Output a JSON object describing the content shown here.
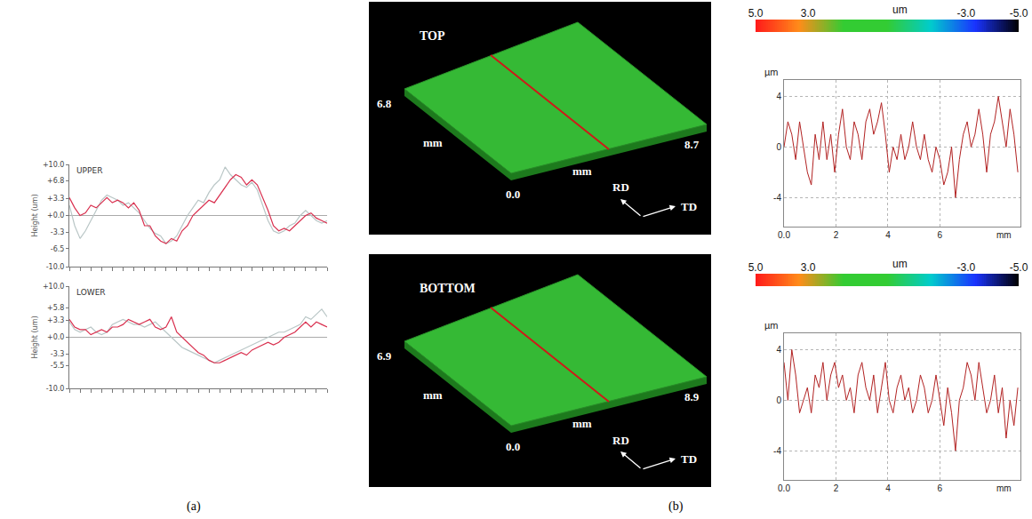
{
  "chart_data": [
    {
      "type": "line",
      "title": "UPPER",
      "ylabel": "Height (um)",
      "x": [
        0,
        1,
        2,
        3,
        4,
        5,
        6,
        7,
        8,
        9,
        10,
        11,
        12,
        13,
        14,
        15,
        16,
        17,
        18,
        19,
        20,
        21,
        22,
        23,
        24,
        25,
        26,
        27,
        28,
        29,
        30,
        31,
        32,
        33,
        34,
        35,
        36,
        37,
        38,
        39,
        40,
        41,
        42,
        43,
        44,
        45,
        46,
        47,
        48
      ],
      "series": [
        {
          "color": "#d9304f",
          "values": [
            3.5,
            1.5,
            0,
            0.5,
            2,
            1.5,
            2.5,
            3.5,
            2.5,
            3,
            2.5,
            1.5,
            2.5,
            1,
            -2,
            -2,
            -4,
            -5,
            -5.5,
            -4.5,
            -5,
            -3,
            -2,
            0,
            1,
            2,
            3,
            2.5,
            4,
            5.5,
            7,
            8,
            7.5,
            6,
            7,
            6,
            3.5,
            1,
            -2,
            -3,
            -2.5,
            -3,
            -2,
            -1,
            0,
            0.5,
            -0.5,
            -1,
            -1.5
          ]
        },
        {
          "color": "#b9c6c6",
          "values": [
            2,
            -2,
            -4.5,
            -3,
            -1,
            1,
            3,
            4,
            3.5,
            3,
            2,
            2.5,
            1.5,
            0.5,
            -1,
            -2.5,
            -3.5,
            -4,
            -5.5,
            -5,
            -4,
            -2,
            0,
            1.5,
            3,
            2.5,
            4.5,
            6,
            7,
            9.5,
            8,
            7,
            6,
            5.5,
            6.5,
            5,
            2,
            -1,
            -3,
            -3.5,
            -3,
            -2,
            -1.5,
            0,
            1,
            0,
            -1,
            -1.5,
            -1
          ]
        }
      ],
      "xlim": [
        0,
        48
      ],
      "xticks": [
        0,
        2,
        4,
        6,
        8,
        10,
        12,
        14,
        16,
        18,
        20,
        22,
        24,
        26,
        28,
        30,
        32,
        34,
        36,
        38,
        40,
        42,
        44,
        46,
        48
      ],
      "ylim": [
        -10,
        10
      ],
      "yticks": [
        {
          "value": 10,
          "label": "+10.0"
        },
        {
          "value": 6.8,
          "label": "+6.8"
        },
        {
          "value": 3.3,
          "label": "+3.3"
        },
        {
          "value": 0,
          "label": "+0.0"
        },
        {
          "value": -3.3,
          "label": "-3.3"
        },
        {
          "value": -6.5,
          "label": "-6.5"
        },
        {
          "value": -10,
          "label": "-10.0"
        }
      ],
      "tick_labels": "y",
      "grid": false
    },
    {
      "type": "line",
      "title": "LOWER",
      "ylabel": "Height (um)",
      "x": [
        0,
        1,
        2,
        3,
        4,
        5,
        6,
        7,
        8,
        9,
        10,
        11,
        12,
        13,
        14,
        15,
        16,
        17,
        18,
        19,
        20,
        21,
        22,
        23,
        24,
        25,
        26,
        27,
        28,
        29,
        30,
        31,
        32,
        33,
        34,
        35,
        36,
        37,
        38,
        39,
        40,
        41,
        42,
        43,
        44,
        45,
        46,
        47,
        48
      ],
      "series": [
        {
          "color": "#d9304f",
          "values": [
            3.5,
            2,
            1.5,
            1.5,
            0.5,
            1,
            1.5,
            1,
            2,
            2,
            2.5,
            3.5,
            3,
            2.5,
            3,
            3.5,
            2,
            1.5,
            2,
            4,
            1,
            0,
            -1,
            -2,
            -3,
            -3.5,
            -4.5,
            -5,
            -5,
            -4.5,
            -4,
            -3.5,
            -3,
            -3.5,
            -2.5,
            -2,
            -1.5,
            -1,
            -1.5,
            -1,
            0,
            0.5,
            1,
            2,
            3,
            2,
            3,
            2.5,
            2
          ]
        },
        {
          "color": "#b9c6c6",
          "values": [
            3,
            1.5,
            1,
            1.5,
            2,
            1,
            0.5,
            1,
            2.5,
            3,
            3.5,
            3,
            2.5,
            2.5,
            2,
            2.5,
            3,
            2,
            1,
            0,
            -1,
            -2,
            -2.5,
            -3,
            -3.5,
            -4,
            -4.5,
            -5,
            -4.5,
            -4,
            -3.5,
            -3,
            -2.5,
            -2,
            -1.5,
            -1,
            -0.5,
            0,
            0.5,
            1,
            1,
            1.5,
            2,
            2.5,
            4,
            3.5,
            4.5,
            5.5,
            4
          ]
        }
      ],
      "xlim": [
        0,
        48
      ],
      "xticks": [
        0,
        2,
        4,
        6,
        8,
        10,
        12,
        14,
        16,
        18,
        20,
        22,
        24,
        26,
        28,
        30,
        32,
        34,
        36,
        38,
        40,
        42,
        44,
        46,
        48
      ],
      "ylim": [
        -10,
        10
      ],
      "yticks": [
        {
          "value": 10,
          "label": "+10.0"
        },
        {
          "value": 5.8,
          "label": "+5.8"
        },
        {
          "value": 3.3,
          "label": "+3.3"
        },
        {
          "value": 0,
          "label": "+0.0"
        },
        {
          "value": -3.3,
          "label": "-3.3"
        },
        {
          "value": -5.5,
          "label": "-5.5"
        },
        {
          "value": -10,
          "label": "-10.0"
        }
      ],
      "tick_labels": "y",
      "grid": false
    },
    {
      "type": "line",
      "xlabel": "mm",
      "ylabel": "µm",
      "color": "#b22222",
      "x": [
        0,
        0.15,
        0.3,
        0.45,
        0.6,
        0.75,
        0.9,
        1.05,
        1.2,
        1.35,
        1.5,
        1.65,
        1.8,
        1.95,
        2.1,
        2.25,
        2.4,
        2.55,
        2.7,
        2.85,
        3,
        3.15,
        3.3,
        3.45,
        3.6,
        3.75,
        3.9,
        4.05,
        4.2,
        4.35,
        4.5,
        4.65,
        4.8,
        4.95,
        5.1,
        5.25,
        5.4,
        5.55,
        5.7,
        5.85,
        6,
        6.15,
        6.3,
        6.45,
        6.6,
        6.75,
        6.9,
        7.05,
        7.2,
        7.35,
        7.5,
        7.65,
        7.8,
        7.95,
        8.1,
        8.25,
        8.4,
        8.55,
        8.7,
        8.85,
        9
      ],
      "values": [
        0,
        2,
        1,
        -1,
        2,
        0,
        -2,
        -3,
        1,
        -1,
        2,
        -1,
        1,
        -2,
        1,
        3,
        0,
        -1,
        2,
        1,
        -1,
        2,
        3,
        1,
        2,
        3.5,
        1,
        -2,
        0,
        -1,
        1,
        -1,
        0,
        2,
        0,
        -1,
        1,
        -1,
        -2,
        0,
        -1,
        -3,
        -2,
        0,
        -4,
        -1,
        1,
        2,
        0,
        1,
        3,
        1,
        -2,
        1,
        2,
        4,
        2,
        0,
        3,
        1,
        -2
      ],
      "xlim": [
        0,
        9.1
      ],
      "xticks": [
        {
          "value": 0,
          "label": "0.0"
        },
        2,
        4,
        6
      ],
      "ylim": [
        -6.3,
        5.3
      ],
      "yticks": [
        -4,
        0,
        4
      ],
      "grid": true
    },
    {
      "type": "line",
      "xlabel": "mm",
      "ylabel": "µm",
      "color": "#b22222",
      "x": [
        0,
        0.15,
        0.3,
        0.45,
        0.6,
        0.75,
        0.9,
        1.05,
        1.2,
        1.35,
        1.5,
        1.65,
        1.8,
        1.95,
        2.1,
        2.25,
        2.4,
        2.55,
        2.7,
        2.85,
        3,
        3.15,
        3.3,
        3.45,
        3.6,
        3.75,
        3.9,
        4.05,
        4.2,
        4.35,
        4.5,
        4.65,
        4.8,
        4.95,
        5.1,
        5.25,
        5.4,
        5.55,
        5.7,
        5.85,
        6,
        6.15,
        6.3,
        6.45,
        6.6,
        6.75,
        6.9,
        7.05,
        7.2,
        7.35,
        7.5,
        7.65,
        7.8,
        7.95,
        8.1,
        8.25,
        8.4,
        8.55,
        8.7,
        8.85,
        9
      ],
      "values": [
        3,
        0,
        4,
        2,
        -1,
        0,
        1,
        -1,
        2,
        1,
        3,
        0,
        2,
        3,
        1,
        2,
        0,
        1,
        -1,
        2,
        3,
        1,
        0,
        2,
        -1,
        1,
        3,
        0,
        -1,
        1,
        2,
        0,
        1,
        -1,
        0,
        2,
        1,
        -1,
        0,
        2,
        0,
        -2,
        1,
        -1,
        -4,
        0,
        1,
        3,
        2,
        0,
        3,
        1,
        -1,
        0,
        2,
        -1,
        1,
        -3,
        0,
        -2,
        1
      ],
      "xlim": [
        0,
        9.1
      ],
      "xticks": [
        {
          "value": 0,
          "label": "0.0"
        },
        2,
        4,
        6
      ],
      "ylim": [
        -6.3,
        5.3
      ],
      "yticks": [
        -4,
        0,
        4
      ],
      "grid": true
    }
  ],
  "surface_views": [
    {
      "title": "TOP",
      "y_extent": 6.8,
      "x_extent": 8.7,
      "origin": "0.0",
      "unit": "mm",
      "directions": [
        "RD",
        "TD"
      ],
      "colorbar": {
        "range": [
          5,
          -5
        ],
        "label": "um",
        "ticks": [
          {
            "value": 5,
            "label": "5.0"
          },
          {
            "value": 3,
            "label": "3.0"
          },
          {
            "value": -3,
            "label": "-3.0"
          },
          {
            "value": -5,
            "label": "-5.0"
          }
        ],
        "colors": [
          "#ff1a1a",
          "#ff8c1a",
          "#33cc33",
          "#33cc33",
          "#00cccc",
          "#1a33ff",
          "#000000"
        ]
      }
    },
    {
      "title": "BOTTOM",
      "y_extent": 6.9,
      "x_extent": 8.9,
      "origin": "0.0",
      "unit": "mm",
      "directions": [
        "RD",
        "TD"
      ],
      "colorbar": {
        "range": [
          5,
          -5
        ],
        "label": "um",
        "ticks": [
          {
            "value": 5,
            "label": "5.0"
          },
          {
            "value": 3,
            "label": "3.0"
          },
          {
            "value": -3,
            "label": "-3.0"
          },
          {
            "value": -5,
            "label": "-5.0"
          }
        ],
        "colors": [
          "#ff1a1a",
          "#ff8c1a",
          "#33cc33",
          "#33cc33",
          "#00cccc",
          "#1a33ff",
          "#000000"
        ]
      }
    }
  ],
  "panel_labels": [
    "(a)",
    "(b)"
  ]
}
